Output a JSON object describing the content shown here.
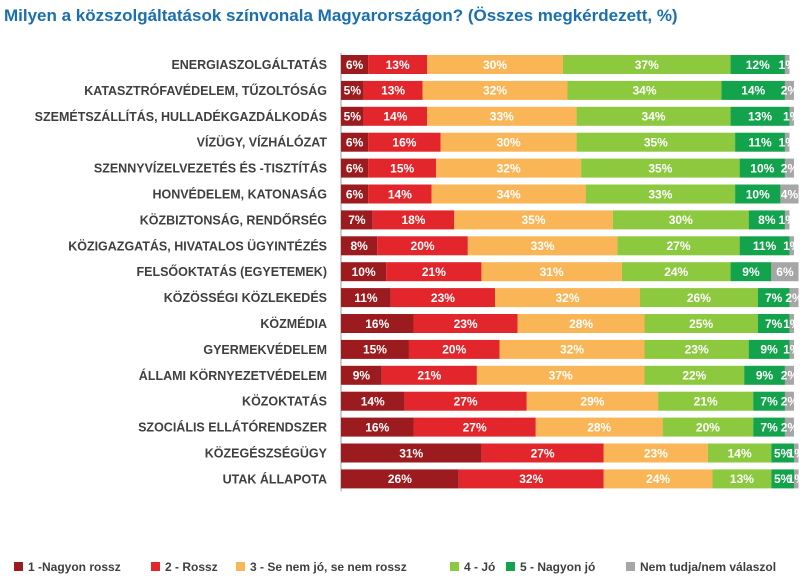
{
  "chart_data": {
    "type": "bar",
    "orientation": "horizontal",
    "stacked": true,
    "title": "Milyen a közszolgáltatások színvonala Magyarországon? (Összes megkérdezett, %)",
    "categories": [
      "ENERGIASZOLGÁLTATÁS",
      "KATASZTRÓFAVÉDELEM, TŰZOLTÓSÁG",
      "SZEMÉTSZÁLLÍTÁS, HULLADÉKGAZDÁLKODÁS",
      "VÍZÜGY, VÍZHÁLÓZAT",
      "SZENNYVÍZELVEZETÉS ÉS -TISZTÍTÁS",
      "HONVÉDELEM, KATONASÁG",
      "KÖZBIZTONSÁG, RENDŐRSÉG",
      "KÖZIGAZGATÁS, HIVATALOS ÜGYINTÉZÉS",
      "FELSŐOKTATÁS (EGYETEMEK)",
      "KÖZÖSSÉGI KÖZLEKEDÉS",
      "KÖZMÉDIA",
      "GYERMEKVÉDELEM",
      "ÁLLAMI KÖRNYEZETVÉDELEM",
      "KÖZOKTATÁS",
      "SZOCIÁLIS ELLÁTÓRENDSZER",
      "KÖZEGÉSZSÉGÜGY",
      "UTAK ÁLLAPOTA"
    ],
    "series": [
      {
        "name": "1 -Nagyon rossz",
        "color": "#9b1b1e",
        "values": [
          6,
          5,
          5,
          6,
          6,
          6,
          7,
          8,
          10,
          11,
          16,
          15,
          9,
          14,
          16,
          31,
          26
        ]
      },
      {
        "name": "2 - Rossz",
        "color": "#e3262b",
        "values": [
          13,
          13,
          14,
          16,
          15,
          14,
          18,
          20,
          21,
          23,
          23,
          20,
          21,
          27,
          27,
          27,
          32
        ]
      },
      {
        "name": "3 - Se nem jó, se nem rossz",
        "color": "#f9b556",
        "values": [
          30,
          32,
          33,
          30,
          32,
          34,
          35,
          33,
          31,
          32,
          28,
          32,
          37,
          29,
          28,
          23,
          24
        ]
      },
      {
        "name": "4 - Jó",
        "color": "#8cc93e",
        "values": [
          37,
          34,
          34,
          35,
          35,
          33,
          30,
          27,
          24,
          26,
          25,
          23,
          22,
          21,
          20,
          14,
          13
        ]
      },
      {
        "name": "5 - Nagyon jó",
        "color": "#13a34d",
        "values": [
          12,
          14,
          13,
          11,
          10,
          10,
          8,
          11,
          9,
          7,
          7,
          9,
          9,
          7,
          7,
          5,
          5
        ]
      },
      {
        "name": "Nem tudja/nem válaszol",
        "color": "#a6a6a6",
        "values": [
          1,
          2,
          1,
          1,
          2,
          4,
          1,
          1,
          6,
          2,
          1,
          1,
          2,
          2,
          2,
          1,
          1
        ]
      }
    ],
    "value_suffix": "%",
    "xlim": [
      0,
      100
    ],
    "legend_position": "bottom",
    "grid": false
  }
}
